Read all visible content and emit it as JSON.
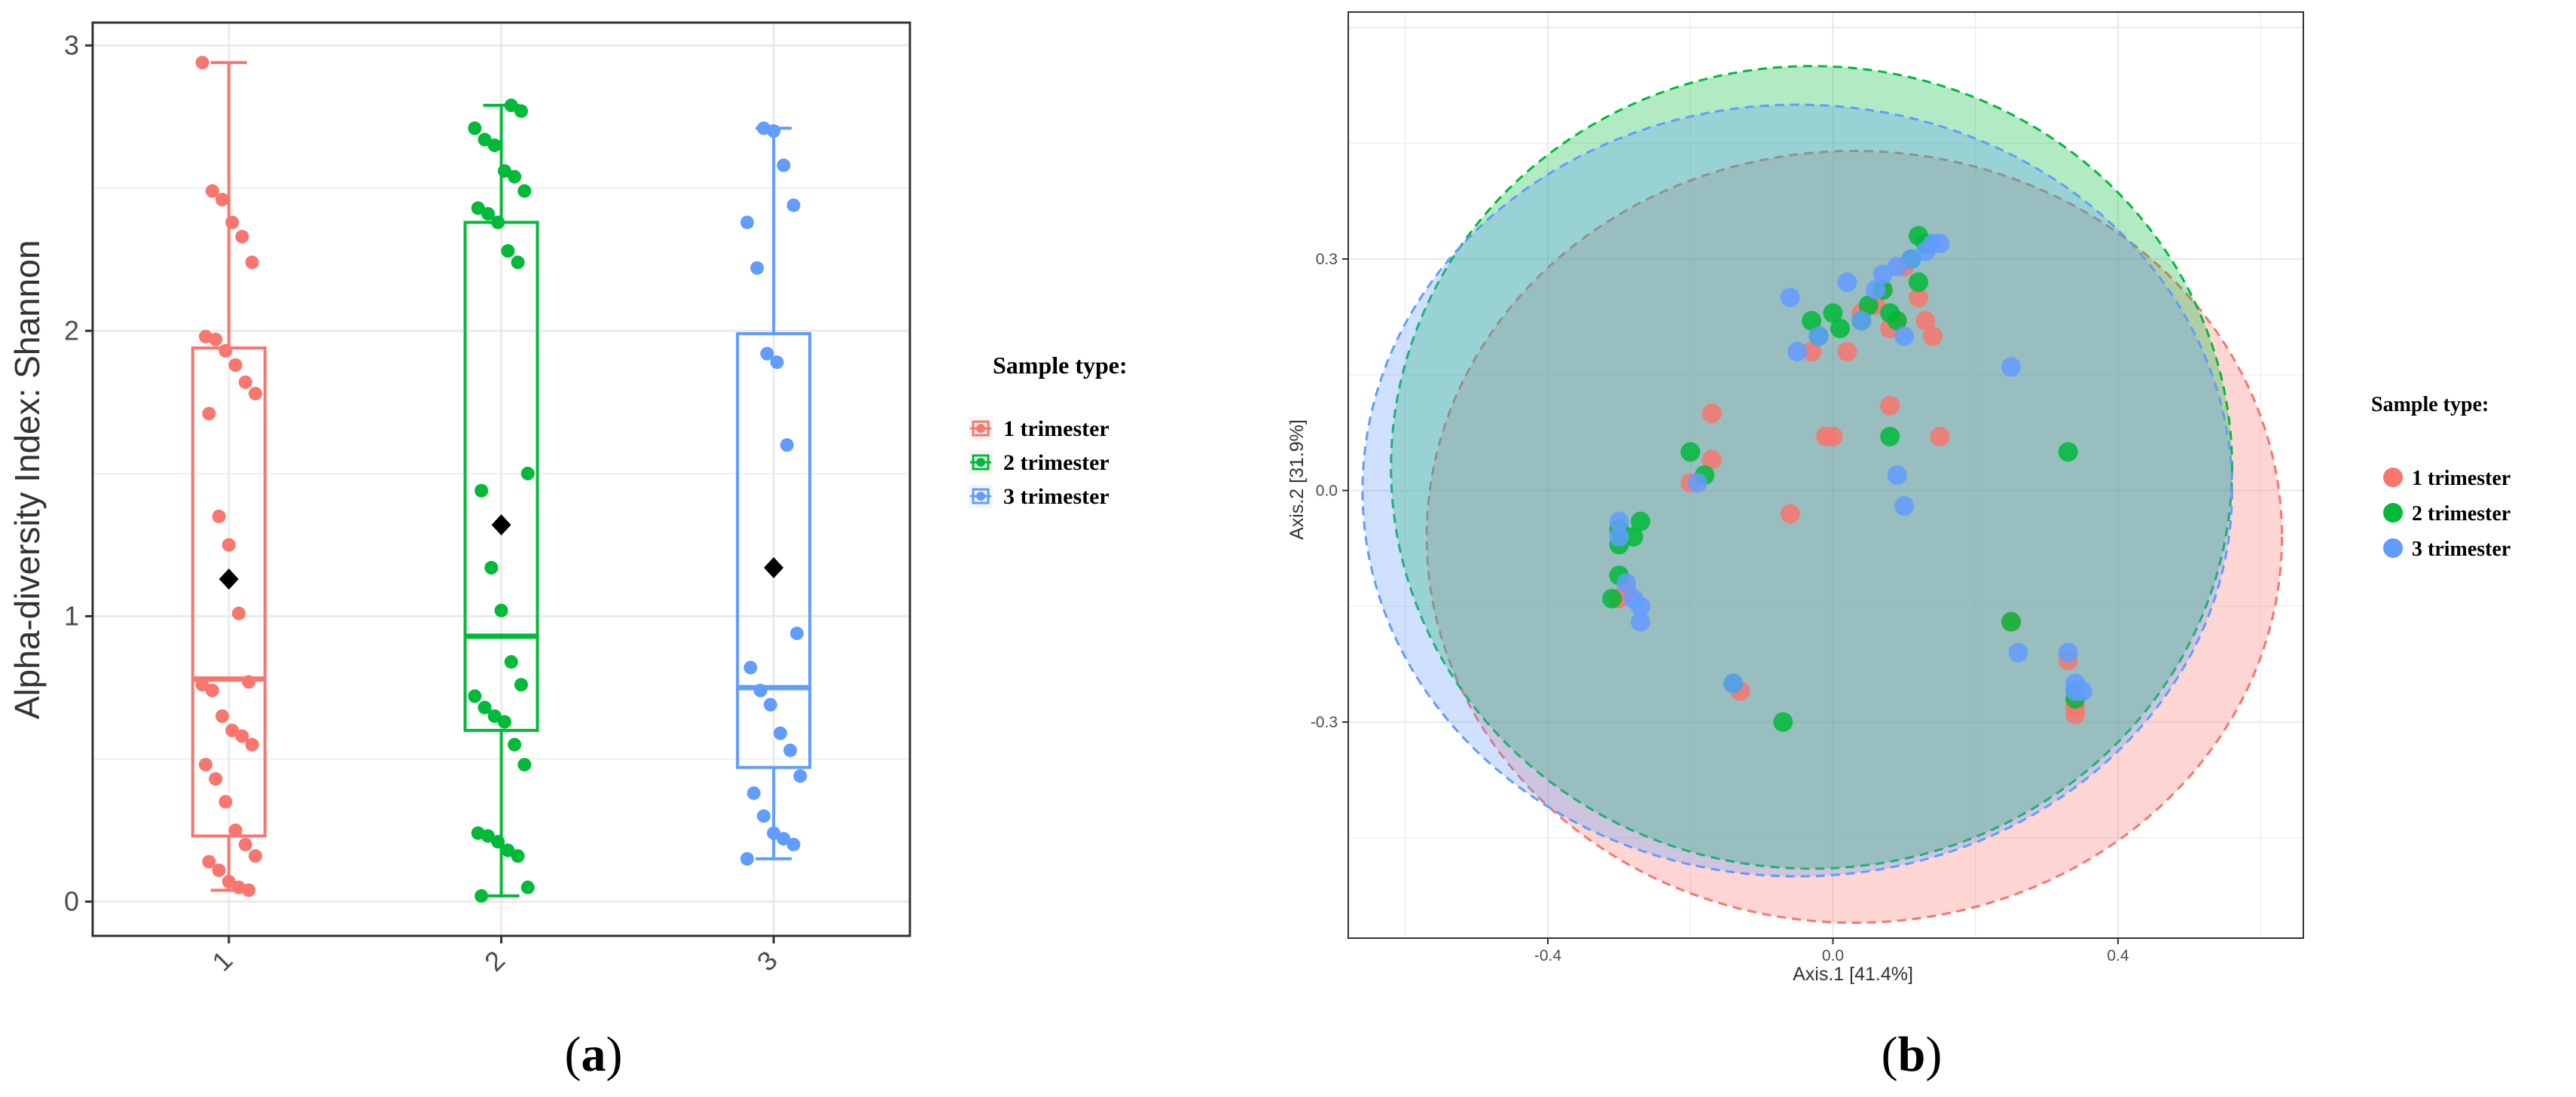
{
  "chart_data": [
    {
      "type": "box",
      "panel_label": "(a)",
      "panel_letter": "a",
      "ylabel": "Alpha-diversity Index: Shannon",
      "xlabel": "",
      "ylim": [
        -0.12,
        3.08
      ],
      "yticks": [
        0,
        1,
        2,
        3
      ],
      "categories": [
        "1",
        "2",
        "3"
      ],
      "legend": {
        "title": "Sample type:",
        "entries": [
          "1 trimester",
          "2 trimester",
          "3 trimester"
        ],
        "placement": "right"
      },
      "series": [
        {
          "name": "1 trimester",
          "color": "#F8766D",
          "box": {
            "whisker_low": 0.04,
            "q1": 0.23,
            "median": 0.78,
            "q3": 1.94,
            "whisker_high": 2.94
          },
          "mean": 1.13,
          "points": [
            2.94,
            2.49,
            2.46,
            2.38,
            2.33,
            2.24,
            1.98,
            1.97,
            1.93,
            1.88,
            1.82,
            1.78,
            1.71,
            1.35,
            1.25,
            1.01,
            0.77,
            0.76,
            0.74,
            0.65,
            0.6,
            0.58,
            0.55,
            0.48,
            0.43,
            0.35,
            0.25,
            0.2,
            0.16,
            0.14,
            0.11,
            0.07,
            0.05,
            0.04
          ]
        },
        {
          "name": "2 trimester",
          "color": "#00BA38",
          "box": {
            "whisker_low": 0.02,
            "q1": 0.6,
            "median": 0.93,
            "q3": 2.38,
            "whisker_high": 2.79
          },
          "mean": 1.32,
          "points": [
            2.79,
            2.77,
            2.71,
            2.67,
            2.65,
            2.56,
            2.54,
            2.49,
            2.43,
            2.41,
            2.38,
            2.28,
            2.24,
            1.5,
            1.44,
            1.17,
            1.02,
            0.84,
            0.76,
            0.72,
            0.68,
            0.65,
            0.63,
            0.55,
            0.48,
            0.24,
            0.23,
            0.21,
            0.18,
            0.16,
            0.05,
            0.02
          ]
        },
        {
          "name": "3 trimester",
          "color": "#619CFF",
          "box": {
            "whisker_low": 0.15,
            "q1": 0.47,
            "median": 0.75,
            "q3": 1.99,
            "whisker_high": 2.71
          },
          "mean": 1.17,
          "points": [
            2.71,
            2.7,
            2.58,
            2.44,
            2.38,
            2.22,
            1.92,
            1.89,
            1.6,
            0.94,
            0.82,
            0.74,
            0.69,
            0.59,
            0.53,
            0.44,
            0.38,
            0.3,
            0.24,
            0.22,
            0.2,
            0.15
          ]
        }
      ]
    },
    {
      "type": "scatter",
      "panel_label": "(b)",
      "panel_letter": "b",
      "xlabel": "Axis.1  [41.4%]",
      "ylabel": "Axis.2  [31.9%]",
      "xlim": [
        -0.68,
        0.66
      ],
      "ylim": [
        -0.58,
        0.62
      ],
      "xticks": [
        -0.4,
        0.0,
        0.4
      ],
      "xticklabels": [
        "-0.4",
        "0.0",
        "0.4"
      ],
      "yticks": [
        -0.3,
        0.0,
        0.3
      ],
      "yticklabels": [
        "-0.3",
        "0.0",
        "0.3"
      ],
      "legend": {
        "title": "Sample type:",
        "entries": [
          "1 trimester",
          "2 trimester",
          "3 trimester"
        ],
        "placement": "right"
      },
      "series": [
        {
          "name": "1 trimester",
          "color": "#F8766D",
          "ellipse": {
            "cx": 0.03,
            "cy": -0.06,
            "rx": 0.6,
            "ry": 0.5,
            "angle": 0
          },
          "x": [
            -0.3,
            -0.29,
            -0.2,
            -0.17,
            -0.17,
            -0.13,
            -0.06,
            0.02,
            0.04,
            0.06,
            0.07,
            0.08,
            0.1,
            0.12,
            0.13,
            0.14,
            0.15,
            -0.03,
            -0.01,
            0.0,
            0.08,
            0.09,
            0.25,
            0.33,
            0.34,
            0.34,
            0.34
          ],
          "y": [
            -0.14,
            -0.13,
            0.01,
            0.04,
            0.1,
            -0.26,
            -0.03,
            0.18,
            0.23,
            0.24,
            0.26,
            0.21,
            0.29,
            0.25,
            0.22,
            0.2,
            0.07,
            0.18,
            0.07,
            0.07,
            0.11,
            0.22,
            -0.17,
            -0.22,
            -0.27,
            -0.28,
            -0.29
          ]
        },
        {
          "name": "2 trimester",
          "color": "#00BA38",
          "ellipse": {
            "cx": -0.03,
            "cy": 0.03,
            "rx": 0.59,
            "ry": 0.52,
            "angle": 0
          },
          "x": [
            -0.31,
            -0.3,
            -0.3,
            -0.3,
            -0.28,
            -0.27,
            -0.2,
            -0.18,
            -0.14,
            -0.07,
            -0.03,
            -0.02,
            0.0,
            0.01,
            0.04,
            0.05,
            0.07,
            0.08,
            0.09,
            0.11,
            0.12,
            0.13,
            0.12,
            0.08,
            0.33,
            0.25,
            0.34,
            0.34
          ],
          "y": [
            -0.14,
            -0.11,
            -0.07,
            -0.05,
            -0.06,
            -0.04,
            0.05,
            0.02,
            -0.25,
            -0.3,
            0.22,
            0.2,
            0.23,
            0.21,
            0.22,
            0.24,
            0.26,
            0.23,
            0.22,
            0.3,
            0.33,
            0.32,
            0.27,
            0.07,
            0.05,
            -0.17,
            -0.26,
            -0.27
          ]
        },
        {
          "name": "3 trimester",
          "color": "#619CFF",
          "ellipse": {
            "cx": -0.05,
            "cy": 0.0,
            "rx": 0.61,
            "ry": 0.5,
            "angle": 0
          },
          "x": [
            -0.3,
            -0.3,
            -0.29,
            -0.28,
            -0.27,
            -0.27,
            -0.19,
            -0.14,
            -0.06,
            -0.05,
            -0.02,
            0.02,
            0.04,
            0.06,
            0.07,
            0.09,
            0.1,
            0.11,
            0.13,
            0.14,
            0.15,
            0.09,
            0.1,
            0.25,
            0.26,
            0.33,
            0.34,
            0.34,
            0.35
          ],
          "y": [
            -0.04,
            -0.06,
            -0.12,
            -0.14,
            -0.15,
            -0.17,
            0.01,
            -0.25,
            0.25,
            0.18,
            0.2,
            0.27,
            0.22,
            0.26,
            0.28,
            0.29,
            0.2,
            0.3,
            0.31,
            0.32,
            0.32,
            0.02,
            -0.02,
            0.16,
            -0.21,
            -0.21,
            -0.25,
            -0.26,
            -0.26
          ]
        }
      ]
    }
  ]
}
